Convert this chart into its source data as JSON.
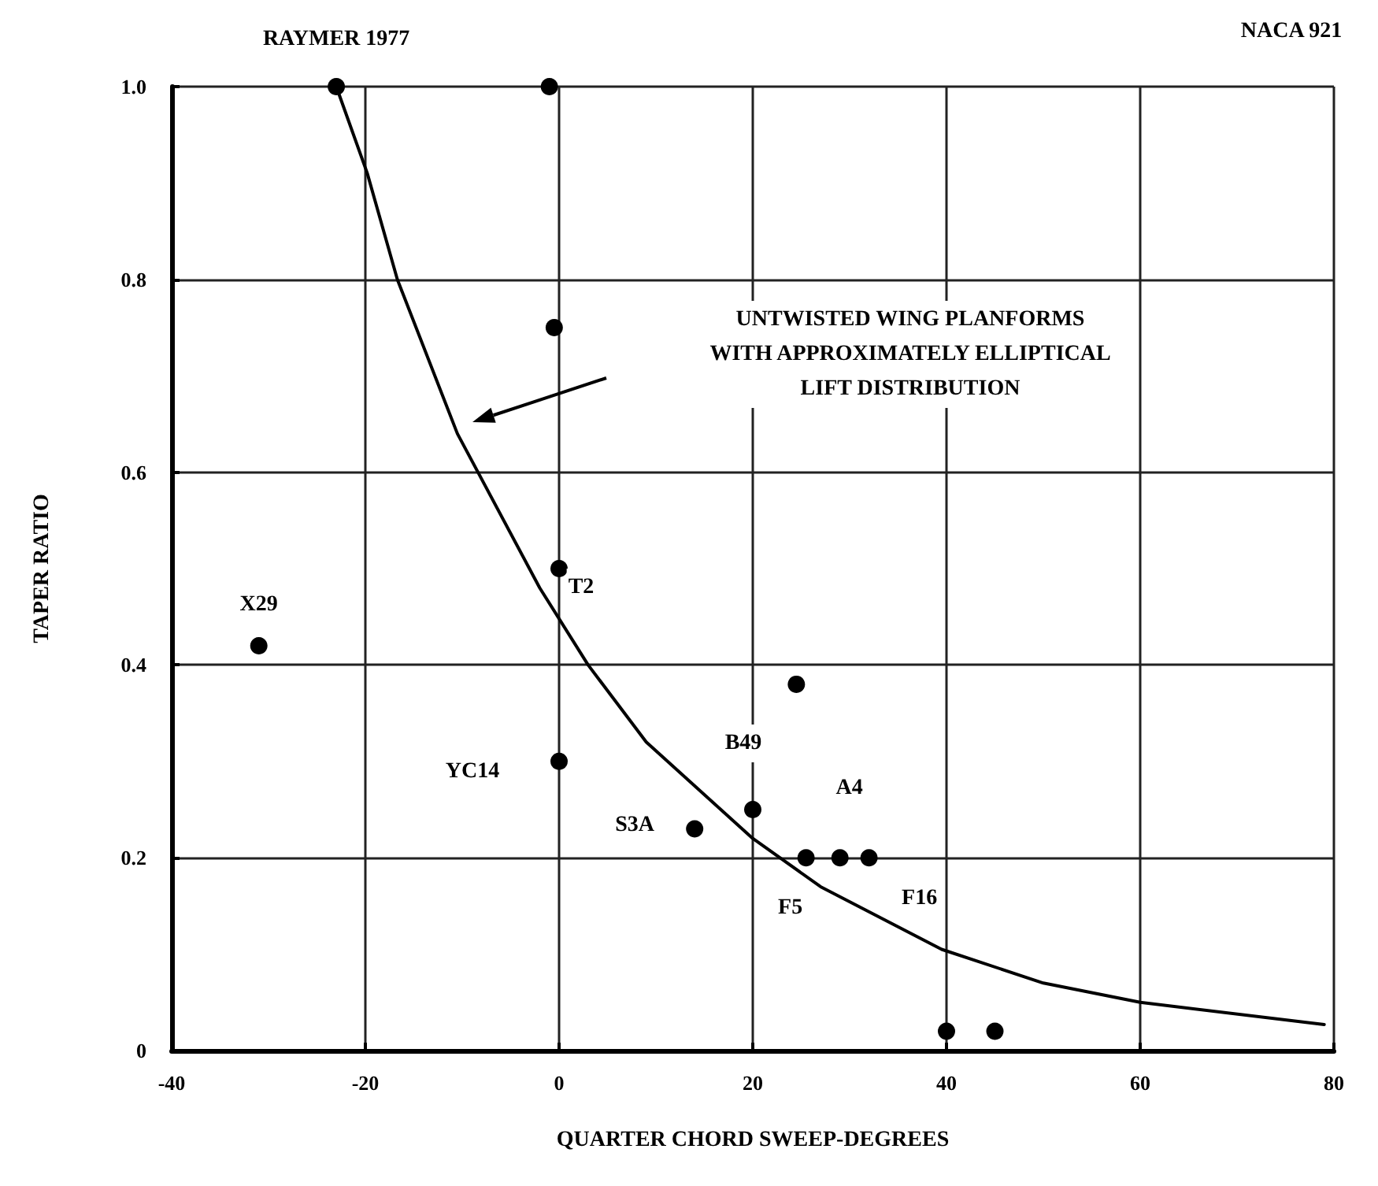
{
  "chart_data": {
    "type": "scatter",
    "xlabel": "QUARTER CHORD SWEEP-DEGREES",
    "ylabel": "TAPER RATIO",
    "xlim": [
      -40,
      80
    ],
    "xticks": [
      -40,
      -20,
      0,
      20,
      40,
      60,
      80
    ],
    "ylim": [
      0,
      1
    ],
    "yticks": [
      0,
      0.2,
      0.4,
      0.6,
      0.8,
      {
        "value": 1,
        "label": "1.0"
      }
    ],
    "grid": true,
    "marker": "circle",
    "series": [
      {
        "type": "line",
        "color": "#000000",
        "marker": "none",
        "x": [
          -23,
          -19.8,
          -16.7,
          -10.5,
          -2,
          3,
          9,
          20,
          27,
          39.5,
          50,
          60,
          79
        ],
        "values": [
          1.0,
          0.91,
          0.8,
          0.64,
          0.48,
          0.4,
          0.32,
          0.22,
          0.17,
          0.105,
          0.07,
          0.05,
          0.027
        ]
      },
      {
        "color": "#000000",
        "x": [
          -23,
          -1,
          -0.5,
          0,
          -31,
          0,
          14,
          20,
          24.5,
          25.5,
          29,
          32,
          40,
          45
        ],
        "values": [
          1.0,
          1.0,
          0.75,
          0.5,
          0.42,
          0.3,
          0.23,
          0.25,
          0.38,
          0.2,
          0.2,
          0.2,
          0.02,
          0.02
        ]
      }
    ],
    "annotations": [
      {
        "text": "RAYMER 1977",
        "x": -23,
        "y": 1.0
      },
      "NACA 921",
      {
        "text": "T2",
        "x": 0,
        "y": 0.5
      },
      {
        "text": "X29",
        "x": -31,
        "y": 0.42
      },
      "YC14",
      {
        "text": "S3A",
        "x": 14,
        "y": 0.23
      },
      {
        "text": "B49",
        "x": 20,
        "y": 0.25
      },
      {
        "text": "A4",
        "x": 29,
        "y": 0.2
      },
      {
        "text": "F5",
        "x": 25.5,
        "y": 0.2
      },
      {
        "text": "F16",
        "x": 32,
        "y": 0.2
      },
      "UNTWISTED WING PLANFORMS\nWITH APPROXIMATELY ELLIPTICAL\nLIFT DISTRIBUTION"
    ]
  }
}
